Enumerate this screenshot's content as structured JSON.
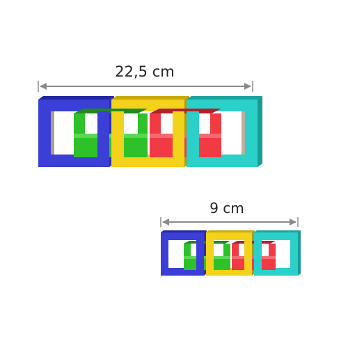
{
  "large_chain": {
    "measure_label": "22,5 cm",
    "link_colors": [
      "#3b3fd6",
      "#f2d21b",
      "#2bd0c8"
    ],
    "cross_link_colors": [
      "#2ec12a",
      "#f23a45"
    ]
  },
  "small_chain": {
    "measure_label": "9 cm",
    "link_colors": [
      "#3b3fd6",
      "#f2d21b",
      "#2bd0c8"
    ],
    "cross_link_colors": [
      "#2ec12a",
      "#f23a45"
    ]
  },
  "dimension_line_color": "#8a8a8a"
}
